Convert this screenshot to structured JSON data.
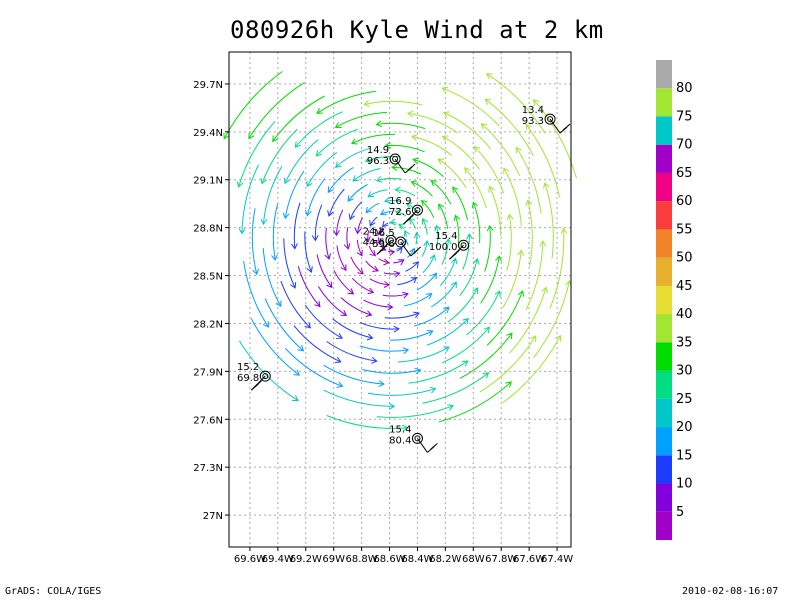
{
  "title": "080926h Kyle Wind at 2 km",
  "footer": {
    "left": "GrADS: COLA/IGES",
    "right": "2010-02-08-16:07"
  },
  "chart_data": {
    "type": "streamline",
    "title": "080926h Kyle Wind at 2 km",
    "x_axis": {
      "range": [
        -69.75,
        -67.3
      ],
      "ticks": [
        -69.6,
        -69.4,
        -69.2,
        -69.0,
        -68.8,
        -68.6,
        -68.4,
        -68.2,
        -68.0,
        -67.8,
        -67.6,
        -67.4
      ],
      "tick_labels": [
        "69.6W",
        "69.4W",
        "69.2W",
        "69W",
        "68.8W",
        "68.6W",
        "68.4W",
        "68.2W",
        "68W",
        "67.8W",
        "67.6W",
        "67.4W"
      ]
    },
    "y_axis": {
      "range": [
        26.8,
        29.9
      ],
      "ticks": [
        27.0,
        27.3,
        27.6,
        27.9,
        28.2,
        28.5,
        28.8,
        29.1,
        29.4,
        29.7
      ],
      "tick_labels": [
        "27N",
        "27.3N",
        "27.6N",
        "27.9N",
        "28.2N",
        "28.5N",
        "28.8N",
        "29.1N",
        "29.4N",
        "29.7N"
      ]
    },
    "grid": true,
    "colorbar": {
      "labels": [
        "5",
        "10",
        "15",
        "20",
        "25",
        "30",
        "35",
        "40",
        "45",
        "50",
        "55",
        "60",
        "65",
        "70",
        "75",
        "80"
      ],
      "colors": [
        "#a000c8",
        "#8200dc",
        "#1e3cff",
        "#00a0ff",
        "#00c8c8",
        "#00dc82",
        "#00dc00",
        "#a0e632",
        "#e6dc32",
        "#e6af2d",
        "#f08228",
        "#fa3c3c",
        "#f00082",
        "#a000c8",
        "#00c8c8",
        "#a0e632",
        "#aaaaaa"
      ]
    },
    "center": {
      "lon": -68.58,
      "lat": 28.74
    },
    "stations": [
      {
        "lon": -68.59,
        "lat": 28.72,
        "label1": "24.2",
        "label2": "44.6"
      },
      {
        "lon": -68.52,
        "lat": 28.71,
        "label1": "16.5",
        "label2": "53.6"
      },
      {
        "lon": -68.4,
        "lat": 28.91,
        "label1": "16.9",
        "label2": "72.6"
      },
      {
        "lon": -68.56,
        "lat": 29.23,
        "label1": "14.9",
        "label2": "96.3"
      },
      {
        "lon": -68.07,
        "lat": 28.69,
        "label1": "15.4",
        "label2": "100.0"
      },
      {
        "lon": -67.45,
        "lat": 29.48,
        "label1": "13.4",
        "label2": "93.3"
      },
      {
        "lon": -69.49,
        "lat": 27.87,
        "label1": "15.2",
        "label2": "69.8"
      },
      {
        "lon": -68.4,
        "lat": 27.48,
        "label1": "15.4",
        "label2": "80.4"
      }
    ]
  }
}
